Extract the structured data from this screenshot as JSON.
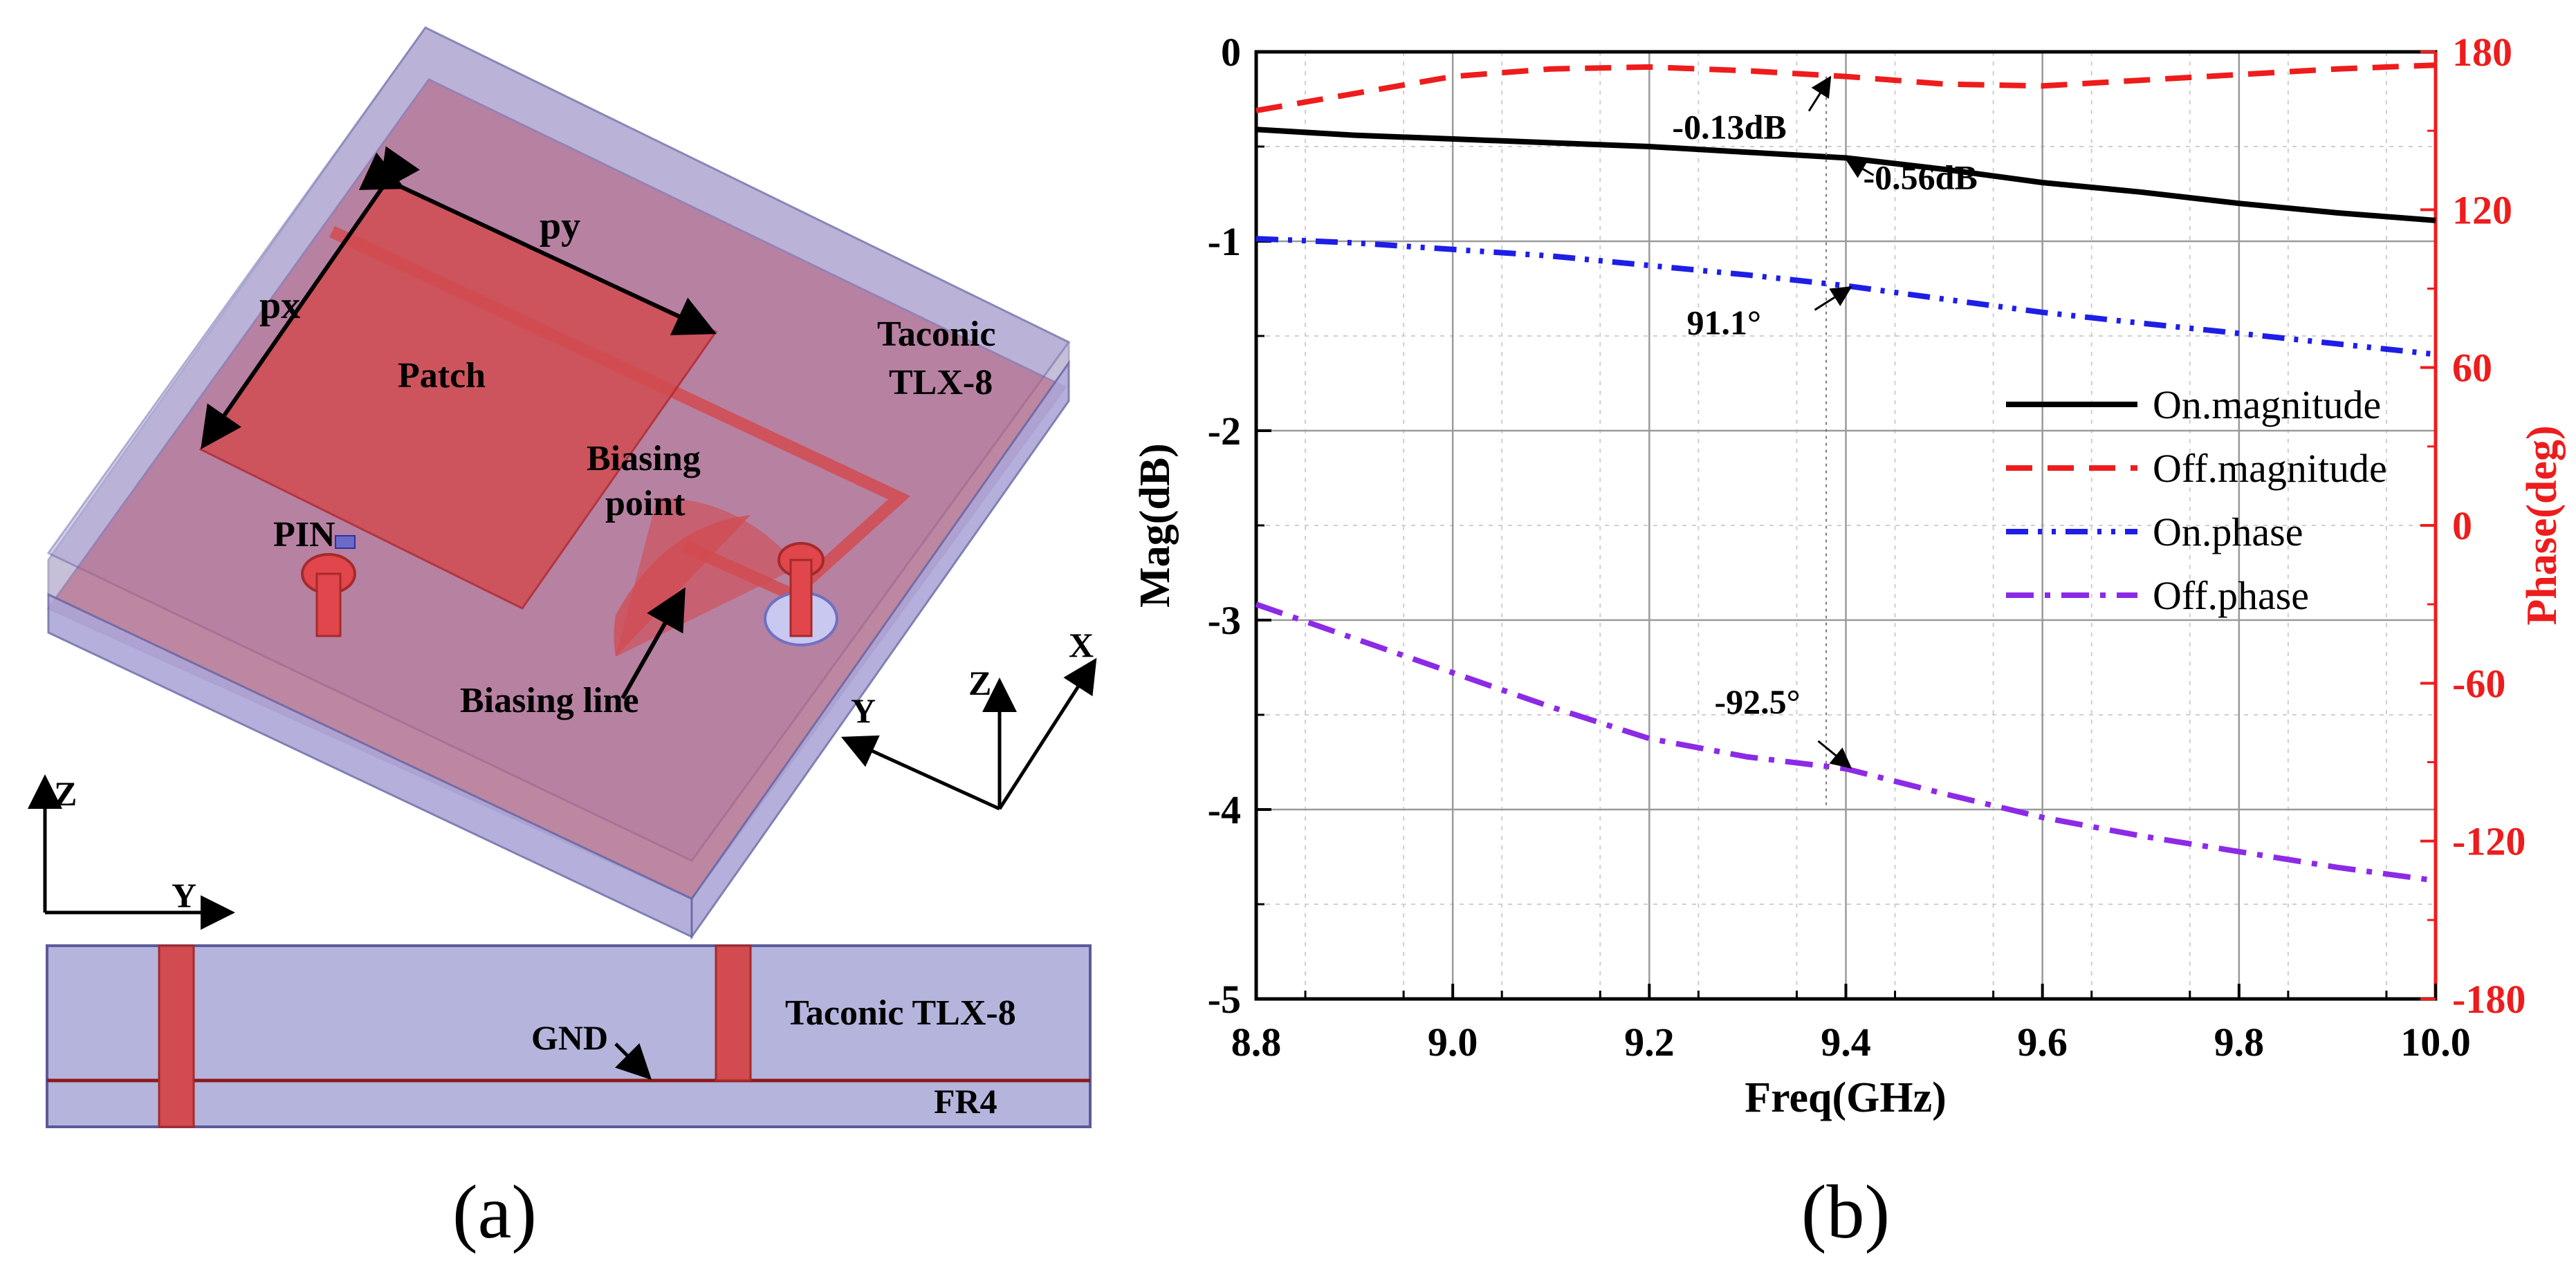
{
  "panel_a": {
    "caption": "(a)",
    "labels": {
      "px": "px",
      "py": "py",
      "patch": "Patch",
      "taconic_line1": "Taconic",
      "taconic_line2": "TLX-8",
      "biasing_point_line1": "Biasing",
      "biasing_point_line2": "point",
      "pin": "PIN",
      "biasing_line": "Biasing line",
      "axis_x": "X",
      "axis_y": "Y",
      "axis_z": "Z",
      "axis2_z": "Z",
      "axis2_y": "Y",
      "side_taconic": "Taconic TLX-8",
      "side_gnd": "GND",
      "side_fr4": "FR4"
    },
    "colors": {
      "substrate": "#b4b4dc",
      "patch": "#d24b50",
      "via": "#e0464b"
    }
  },
  "panel_b": {
    "caption": "(b)"
  },
  "chart_data": {
    "type": "line",
    "xlabel": "Freq(GHz)",
    "ylabel_left": "Mag(dB)",
    "ylabel_right": "Phase(deg)",
    "xlim": [
      8.8,
      10.0
    ],
    "ylim_left": [
      -5,
      0
    ],
    "ylim_right": [
      -180,
      180
    ],
    "x_ticks": [
      "8.8",
      "9.0",
      "9.2",
      "9.4",
      "9.6",
      "9.8",
      "10.0"
    ],
    "y_ticks_left": [
      "0",
      "-1",
      "-2",
      "-3",
      "-4",
      "-5"
    ],
    "y_ticks_right": [
      "180",
      "120",
      "60",
      "0",
      "-60",
      "-120",
      "-180"
    ],
    "grid": true,
    "legend_position": "right-middle",
    "x": [
      8.8,
      8.9,
      9.0,
      9.1,
      9.2,
      9.3,
      9.4,
      9.5,
      9.6,
      9.7,
      9.8,
      9.9,
      10.0
    ],
    "series": [
      {
        "name": "On.magnitude",
        "axis": "left",
        "color": "#000000",
        "style": "solid",
        "values": [
          -0.41,
          -0.44,
          -0.46,
          -0.48,
          -0.5,
          -0.53,
          -0.56,
          -0.62,
          -0.69,
          -0.74,
          -0.8,
          -0.85,
          -0.89
        ]
      },
      {
        "name": "Off.magnitude",
        "axis": "left",
        "color": "#ee1c1c",
        "style": "dash",
        "values": [
          -0.31,
          -0.22,
          -0.13,
          -0.09,
          -0.08,
          -0.1,
          -0.13,
          -0.17,
          -0.18,
          -0.15,
          -0.12,
          -0.09,
          -0.07
        ]
      },
      {
        "name": "On.phase",
        "axis": "right",
        "color": "#1e1ee6",
        "style": "dashdotdot",
        "values": [
          109.0,
          107.4,
          104.9,
          102.4,
          98.8,
          95.2,
          91.1,
          86.0,
          81.0,
          76.9,
          73.0,
          69.0,
          65.0
        ]
      },
      {
        "name": "Off.phase",
        "axis": "right",
        "color": "#8c2ae6",
        "style": "dashdot",
        "values": [
          -30.0,
          -43.0,
          -56.0,
          -69.0,
          -81.0,
          -88.0,
          -92.5,
          -102.0,
          -111.0,
          -118.0,
          -124.0,
          -130.0,
          -135.0
        ]
      }
    ],
    "annotations": [
      {
        "text": "-0.13dB",
        "x": 9.38,
        "axis": "left",
        "y": -0.13
      },
      {
        "text": "-0.56dB",
        "x": 9.4,
        "axis": "left",
        "y": -0.56
      },
      {
        "text": "91.1°",
        "x": 9.4,
        "axis": "right",
        "y": 91.1
      },
      {
        "text": "-92.5°",
        "x": 9.4,
        "axis": "right",
        "y": -92.5
      }
    ]
  }
}
